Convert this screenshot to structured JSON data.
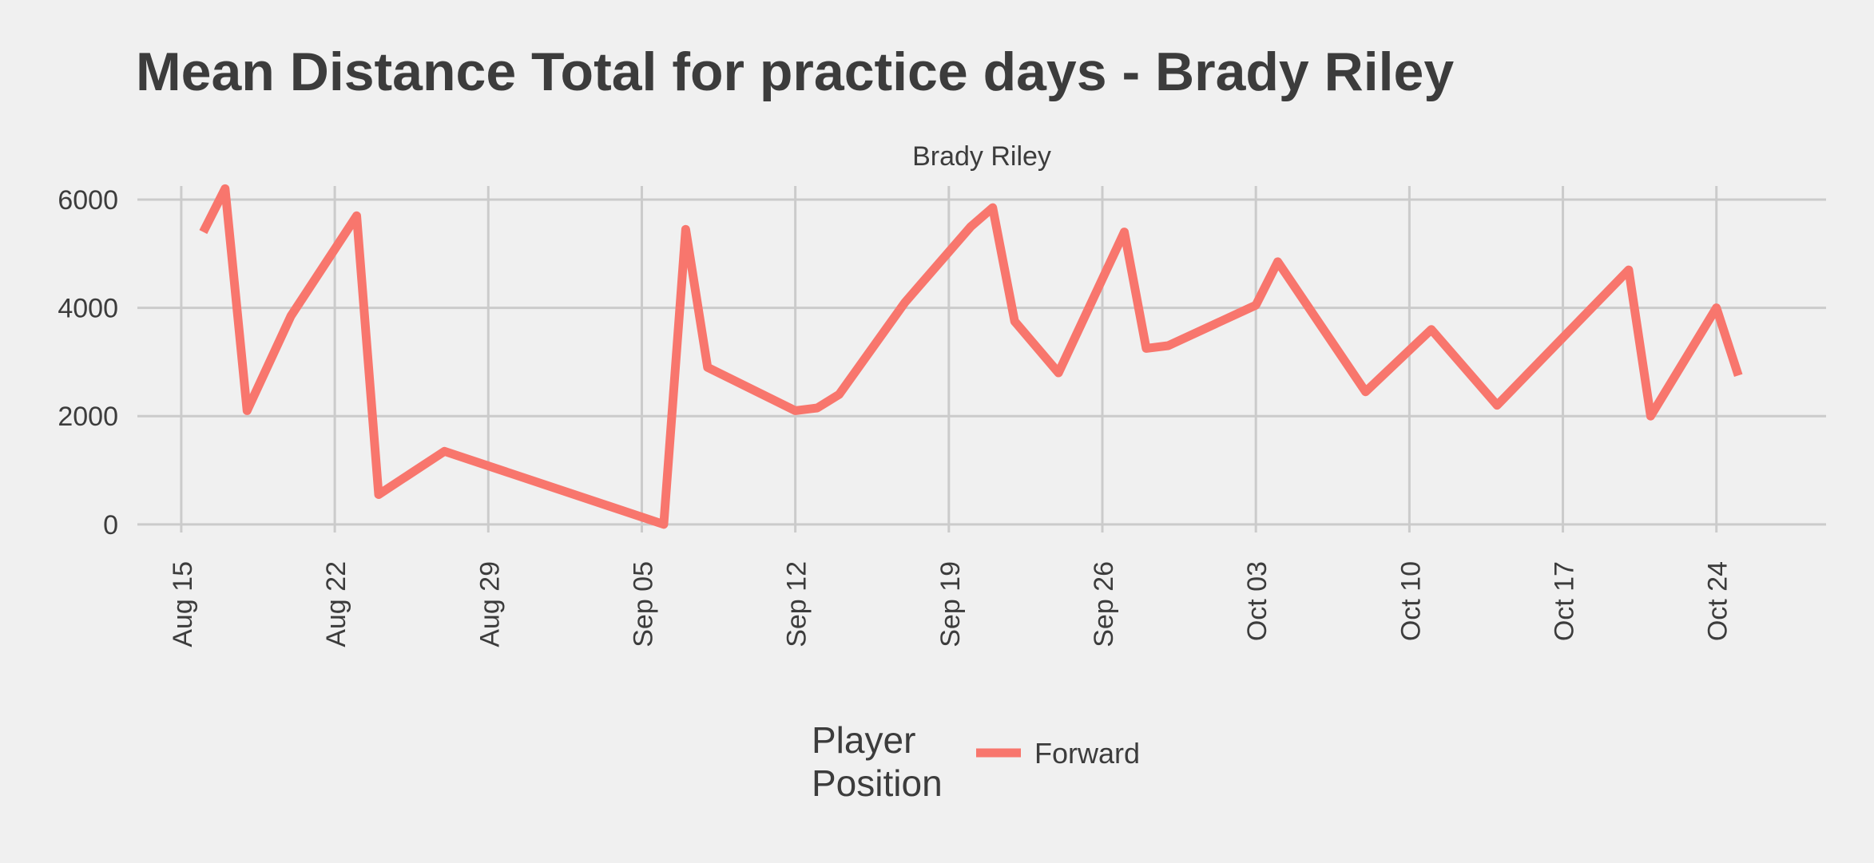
{
  "chart_data": {
    "type": "line",
    "title": "Mean Distance Total for practice days -  Brady Riley",
    "facet_label": "Brady Riley",
    "xlabel": "",
    "ylabel": "",
    "x_type": "date",
    "x_range": [
      "2016-08-13",
      "2016-10-29"
    ],
    "ylim": [
      -150,
      6250
    ],
    "y_ticks": [
      0,
      2000,
      4000,
      6000
    ],
    "x_ticks": [
      {
        "date": "2016-08-15",
        "label": "Aug 15"
      },
      {
        "date": "2016-08-22",
        "label": "Aug 22"
      },
      {
        "date": "2016-08-29",
        "label": "Aug 29"
      },
      {
        "date": "2016-09-05",
        "label": "Sep 05"
      },
      {
        "date": "2016-09-12",
        "label": "Sep 12"
      },
      {
        "date": "2016-09-19",
        "label": "Sep 19"
      },
      {
        "date": "2016-09-26",
        "label": "Sep 26"
      },
      {
        "date": "2016-10-03",
        "label": "Oct 03"
      },
      {
        "date": "2016-10-10",
        "label": "Oct 10"
      },
      {
        "date": "2016-10-17",
        "label": "Oct 17"
      },
      {
        "date": "2016-10-24",
        "label": "Oct 24"
      }
    ],
    "grid": true,
    "legend": {
      "title": [
        "Player",
        "Position"
      ],
      "position": "bottom"
    },
    "series": [
      {
        "name": "Forward",
        "color": "#f8766d",
        "points": [
          {
            "x": "2016-08-16",
            "y": 5400
          },
          {
            "x": "2016-08-17",
            "y": 6200
          },
          {
            "x": "2016-08-18",
            "y": 2100
          },
          {
            "x": "2016-08-20",
            "y": 3850
          },
          {
            "x": "2016-08-23",
            "y": 5700
          },
          {
            "x": "2016-08-24",
            "y": 550
          },
          {
            "x": "2016-08-27",
            "y": 1350
          },
          {
            "x": "2016-09-06",
            "y": 0
          },
          {
            "x": "2016-09-07",
            "y": 5450
          },
          {
            "x": "2016-09-08",
            "y": 2900
          },
          {
            "x": "2016-09-12",
            "y": 2100
          },
          {
            "x": "2016-09-13",
            "y": 2150
          },
          {
            "x": "2016-09-14",
            "y": 2400
          },
          {
            "x": "2016-09-17",
            "y": 4100
          },
          {
            "x": "2016-09-20",
            "y": 5500
          },
          {
            "x": "2016-09-21",
            "y": 5850
          },
          {
            "x": "2016-09-22",
            "y": 3750
          },
          {
            "x": "2016-09-24",
            "y": 2800
          },
          {
            "x": "2016-09-27",
            "y": 5400
          },
          {
            "x": "2016-09-28",
            "y": 3250
          },
          {
            "x": "2016-09-29",
            "y": 3300
          },
          {
            "x": "2016-10-03",
            "y": 4050
          },
          {
            "x": "2016-10-04",
            "y": 4850
          },
          {
            "x": "2016-10-08",
            "y": 2450
          },
          {
            "x": "2016-10-11",
            "y": 3600
          },
          {
            "x": "2016-10-14",
            "y": 2200
          },
          {
            "x": "2016-10-20",
            "y": 4700
          },
          {
            "x": "2016-10-21",
            "y": 2000
          },
          {
            "x": "2016-10-24",
            "y": 4000
          },
          {
            "x": "2016-10-25",
            "y": 2750
          }
        ]
      }
    ]
  }
}
